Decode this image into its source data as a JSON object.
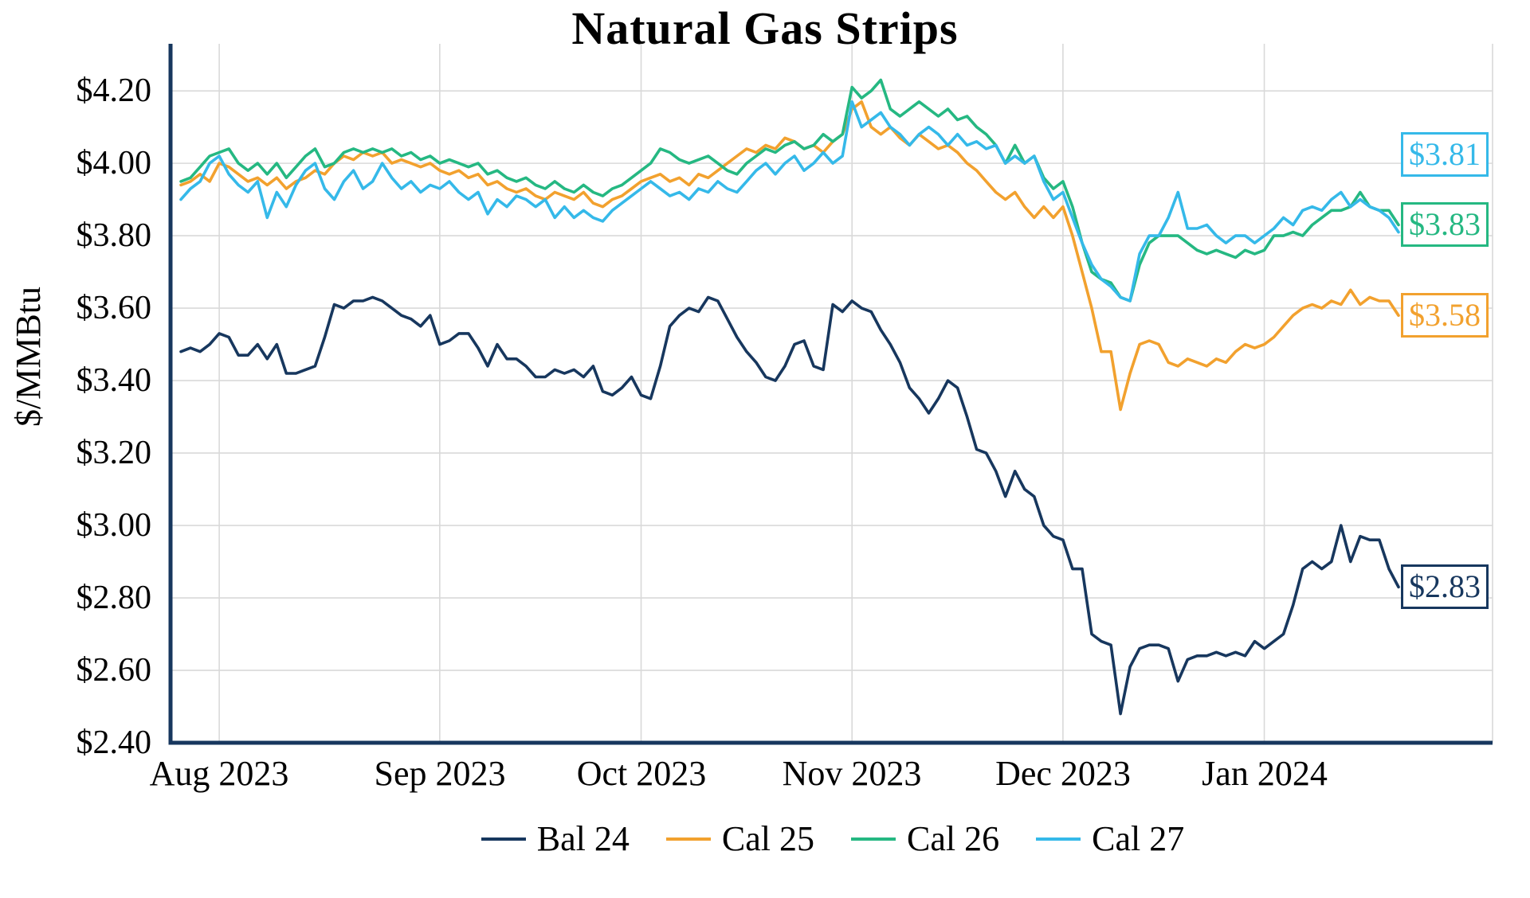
{
  "title": "Natural Gas Strips",
  "y_axis_label": "$/MMBtu",
  "chart_data": {
    "type": "line",
    "title": "Natural Gas Strips",
    "xlabel": "",
    "ylabel": "$/MMBtu",
    "ylim": [
      2.4,
      4.33
    ],
    "grid": true,
    "legend_position": "bottom",
    "axis_color": "#17375E",
    "grid_color": "#D9D9D9",
    "n_points": 128,
    "y_ticks": [
      {
        "value": 2.4,
        "label": "$2.40"
      },
      {
        "value": 2.6,
        "label": "$2.60"
      },
      {
        "value": 2.8,
        "label": "$2.80"
      },
      {
        "value": 3.0,
        "label": "$3.00"
      },
      {
        "value": 3.2,
        "label": "$3.20"
      },
      {
        "value": 3.4,
        "label": "$3.40"
      },
      {
        "value": 3.6,
        "label": "$3.60"
      },
      {
        "value": 3.8,
        "label": "$3.80"
      },
      {
        "value": 4.0,
        "label": "$4.00"
      },
      {
        "value": 4.2,
        "label": "$4.20"
      }
    ],
    "x_ticks": [
      {
        "index": 4,
        "label": "Aug 2023"
      },
      {
        "index": 27,
        "label": "Sep 2023"
      },
      {
        "index": 48,
        "label": "Oct 2023"
      },
      {
        "index": 70,
        "label": "Nov 2023"
      },
      {
        "index": 92,
        "label": "Dec 2023"
      },
      {
        "index": 113,
        "label": "Jan 2024"
      }
    ],
    "series": [
      {
        "name": "Bal 24",
        "color": "#17375E",
        "end_label": "$2.83",
        "values": [
          3.48,
          3.49,
          3.48,
          3.5,
          3.53,
          3.52,
          3.47,
          3.47,
          3.5,
          3.46,
          3.5,
          3.42,
          3.42,
          3.43,
          3.44,
          3.52,
          3.61,
          3.6,
          3.62,
          3.62,
          3.63,
          3.62,
          3.6,
          3.58,
          3.57,
          3.55,
          3.58,
          3.5,
          3.51,
          3.53,
          3.53,
          3.49,
          3.44,
          3.5,
          3.46,
          3.46,
          3.44,
          3.41,
          3.41,
          3.43,
          3.42,
          3.43,
          3.41,
          3.44,
          3.37,
          3.36,
          3.38,
          3.41,
          3.36,
          3.35,
          3.44,
          3.55,
          3.58,
          3.6,
          3.59,
          3.63,
          3.62,
          3.57,
          3.52,
          3.48,
          3.45,
          3.41,
          3.4,
          3.44,
          3.5,
          3.51,
          3.44,
          3.43,
          3.61,
          3.59,
          3.62,
          3.6,
          3.59,
          3.54,
          3.5,
          3.45,
          3.38,
          3.35,
          3.31,
          3.35,
          3.4,
          3.38,
          3.3,
          3.21,
          3.2,
          3.15,
          3.08,
          3.15,
          3.1,
          3.08,
          3.0,
          2.97,
          2.96,
          2.88,
          2.88,
          2.7,
          2.68,
          2.67,
          2.48,
          2.61,
          2.66,
          2.67,
          2.67,
          2.66,
          2.57,
          2.63,
          2.64,
          2.64,
          2.65,
          2.64,
          2.65,
          2.64,
          2.68,
          2.66,
          2.68,
          2.7,
          2.78,
          2.88,
          2.9,
          2.88,
          2.9,
          3.0,
          2.9,
          2.97,
          2.96,
          2.96,
          2.88,
          2.83
        ]
      },
      {
        "name": "Cal 25",
        "color": "#F2A12E",
        "end_label": "$3.58",
        "values": [
          3.94,
          3.95,
          3.97,
          3.95,
          4.0,
          3.99,
          3.97,
          3.95,
          3.96,
          3.94,
          3.96,
          3.93,
          3.95,
          3.96,
          3.98,
          3.97,
          4.0,
          4.02,
          4.01,
          4.03,
          4.02,
          4.03,
          4.0,
          4.01,
          4.0,
          3.99,
          4.0,
          3.98,
          3.97,
          3.98,
          3.96,
          3.97,
          3.94,
          3.95,
          3.93,
          3.92,
          3.93,
          3.91,
          3.9,
          3.92,
          3.91,
          3.9,
          3.92,
          3.89,
          3.88,
          3.9,
          3.91,
          3.93,
          3.95,
          3.96,
          3.97,
          3.95,
          3.96,
          3.94,
          3.97,
          3.96,
          3.98,
          4.0,
          4.02,
          4.04,
          4.03,
          4.05,
          4.04,
          4.07,
          4.06,
          4.04,
          4.05,
          4.03,
          4.06,
          4.08,
          4.15,
          4.17,
          4.1,
          4.08,
          4.1,
          4.07,
          4.05,
          4.08,
          4.06,
          4.04,
          4.05,
          4.03,
          4.0,
          3.98,
          3.95,
          3.92,
          3.9,
          3.92,
          3.88,
          3.85,
          3.88,
          3.85,
          3.88,
          3.8,
          3.7,
          3.6,
          3.48,
          3.48,
          3.32,
          3.42,
          3.5,
          3.51,
          3.5,
          3.45,
          3.44,
          3.46,
          3.45,
          3.44,
          3.46,
          3.45,
          3.48,
          3.5,
          3.49,
          3.5,
          3.52,
          3.55,
          3.58,
          3.6,
          3.61,
          3.6,
          3.62,
          3.61,
          3.65,
          3.61,
          3.63,
          3.62,
          3.62,
          3.58
        ]
      },
      {
        "name": "Cal 26",
        "color": "#25B882",
        "end_label": "$3.83",
        "values": [
          3.95,
          3.96,
          3.99,
          4.02,
          4.03,
          4.04,
          4.0,
          3.98,
          4.0,
          3.97,
          4.0,
          3.96,
          3.99,
          4.02,
          4.04,
          3.99,
          4.0,
          4.03,
          4.04,
          4.03,
          4.04,
          4.03,
          4.04,
          4.02,
          4.03,
          4.01,
          4.02,
          4.0,
          4.01,
          4.0,
          3.99,
          4.0,
          3.97,
          3.98,
          3.96,
          3.95,
          3.96,
          3.94,
          3.93,
          3.95,
          3.93,
          3.92,
          3.94,
          3.92,
          3.91,
          3.93,
          3.94,
          3.96,
          3.98,
          4.0,
          4.04,
          4.03,
          4.01,
          4.0,
          4.01,
          4.02,
          4.0,
          3.98,
          3.97,
          4.0,
          4.02,
          4.04,
          4.03,
          4.05,
          4.06,
          4.04,
          4.05,
          4.08,
          4.06,
          4.08,
          4.21,
          4.18,
          4.2,
          4.23,
          4.15,
          4.13,
          4.15,
          4.17,
          4.15,
          4.13,
          4.15,
          4.12,
          4.13,
          4.1,
          4.08,
          4.05,
          4.0,
          4.05,
          4.0,
          4.02,
          3.96,
          3.93,
          3.95,
          3.88,
          3.78,
          3.7,
          3.68,
          3.67,
          3.63,
          3.62,
          3.72,
          3.78,
          3.8,
          3.8,
          3.8,
          3.78,
          3.76,
          3.75,
          3.76,
          3.75,
          3.74,
          3.76,
          3.75,
          3.76,
          3.8,
          3.8,
          3.81,
          3.8,
          3.83,
          3.85,
          3.87,
          3.87,
          3.88,
          3.92,
          3.88,
          3.87,
          3.87,
          3.83
        ]
      },
      {
        "name": "Cal 27",
        "color": "#35B9E9",
        "end_label": "$3.81",
        "values": [
          3.9,
          3.93,
          3.95,
          4.0,
          4.02,
          3.97,
          3.94,
          3.92,
          3.95,
          3.85,
          3.92,
          3.88,
          3.94,
          3.98,
          4.0,
          3.93,
          3.9,
          3.95,
          3.98,
          3.93,
          3.95,
          4.0,
          3.96,
          3.93,
          3.95,
          3.92,
          3.94,
          3.93,
          3.95,
          3.92,
          3.9,
          3.92,
          3.86,
          3.9,
          3.88,
          3.91,
          3.9,
          3.88,
          3.9,
          3.85,
          3.88,
          3.85,
          3.87,
          3.85,
          3.84,
          3.87,
          3.89,
          3.91,
          3.93,
          3.95,
          3.93,
          3.91,
          3.92,
          3.9,
          3.93,
          3.92,
          3.95,
          3.93,
          3.92,
          3.95,
          3.98,
          4.0,
          3.97,
          4.0,
          4.02,
          3.98,
          4.0,
          4.03,
          4.0,
          4.02,
          4.17,
          4.1,
          4.12,
          4.14,
          4.1,
          4.08,
          4.05,
          4.08,
          4.1,
          4.08,
          4.05,
          4.08,
          4.05,
          4.06,
          4.04,
          4.05,
          4.0,
          4.02,
          4.0,
          4.02,
          3.95,
          3.9,
          3.92,
          3.85,
          3.78,
          3.72,
          3.68,
          3.66,
          3.63,
          3.62,
          3.75,
          3.8,
          3.8,
          3.85,
          3.92,
          3.82,
          3.82,
          3.83,
          3.8,
          3.78,
          3.8,
          3.8,
          3.78,
          3.8,
          3.82,
          3.85,
          3.83,
          3.87,
          3.88,
          3.87,
          3.9,
          3.92,
          3.88,
          3.9,
          3.88,
          3.87,
          3.85,
          3.81
        ]
      }
    ]
  }
}
